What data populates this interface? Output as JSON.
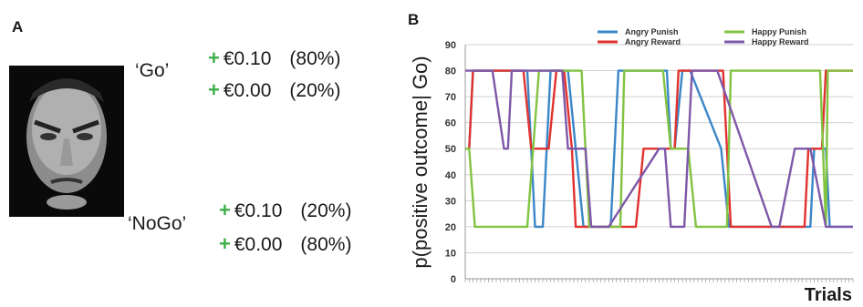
{
  "panelA": {
    "label": "A",
    "go": {
      "label": "‘Go’",
      "outcomes": [
        {
          "sign": "+",
          "amount": "€0.10",
          "prob": "(80%)"
        },
        {
          "sign": "+",
          "amount": "€0.00",
          "prob": "(20%)"
        }
      ]
    },
    "nogo": {
      "label": "‘NoGo’",
      "outcomes": [
        {
          "sign": "+",
          "amount": "€0.10",
          "prob": "(20%)"
        },
        {
          "sign": "+",
          "amount": "€0.00",
          "prob": "(80%)"
        }
      ]
    }
  },
  "panelB": {
    "label": "B"
  },
  "chart_data": {
    "type": "line",
    "title": "",
    "xlabel": "Trials",
    "ylabel": "p(positive outcome| Go)",
    "ylim": [
      0,
      90
    ],
    "yticks": [
      0,
      10,
      20,
      30,
      40,
      50,
      60,
      70,
      80,
      90
    ],
    "xlim": [
      0,
      200
    ],
    "grid": true,
    "legend_position": "top",
    "series": [
      {
        "name": "Angry Punish",
        "color": "#3a86c8",
        "x": [
          0,
          2,
          4,
          32,
          34,
          36,
          40,
          44,
          53,
          57,
          61,
          75,
          79,
          104,
          106,
          108,
          112,
          116,
          132,
          136,
          140,
          178,
          180,
          182,
          186,
          188,
          190,
          200
        ],
        "y": [
          50,
          50,
          80,
          80,
          50,
          20,
          20,
          80,
          80,
          50,
          20,
          20,
          80,
          80,
          50,
          50,
          80,
          80,
          50,
          20,
          20,
          20,
          50,
          50,
          50,
          20,
          20,
          20
        ]
      },
      {
        "name": "Angry Reward",
        "color": "#e0322f",
        "x": [
          0,
          2,
          4,
          30,
          34,
          43,
          47,
          51,
          55,
          57,
          61,
          88,
          92,
          108,
          110,
          112,
          116,
          133,
          137,
          175,
          177,
          184,
          186,
          188,
          190,
          192,
          200
        ],
        "y": [
          50,
          50,
          80,
          80,
          50,
          50,
          80,
          80,
          50,
          20,
          20,
          20,
          50,
          50,
          80,
          80,
          80,
          80,
          20,
          20,
          50,
          50,
          80,
          80,
          80,
          80,
          80
        ]
      },
      {
        "name": "Happy Punish",
        "color": "#82c341",
        "x": [
          0,
          2,
          5,
          30,
          32,
          35,
          38,
          41,
          58,
          60,
          64,
          65,
          80,
          82,
          84,
          100,
          102,
          106,
          115,
          119,
          120,
          135,
          137,
          140,
          183,
          186,
          187,
          200
        ],
        "y": [
          50,
          50,
          20,
          20,
          20,
          50,
          80,
          80,
          80,
          80,
          20,
          20,
          20,
          80,
          80,
          80,
          80,
          50,
          50,
          20,
          20,
          20,
          80,
          80,
          80,
          20,
          80,
          80
        ]
      },
      {
        "name": "Happy Reward",
        "color": "#7e58a8",
        "x": [
          0,
          10,
          14,
          20,
          22,
          24,
          35,
          39,
          50,
          53,
          58,
          62,
          65,
          71,
          74,
          100,
          103,
          106,
          113,
          117,
          122,
          126,
          130,
          158,
          160,
          162,
          170,
          178,
          186,
          200
        ],
        "y": [
          80,
          80,
          80,
          50,
          50,
          80,
          80,
          80,
          80,
          50,
          50,
          50,
          20,
          20,
          20,
          50,
          50,
          20,
          20,
          80,
          80,
          80,
          80,
          20,
          20,
          20,
          50,
          50,
          20,
          20
        ]
      }
    ]
  }
}
